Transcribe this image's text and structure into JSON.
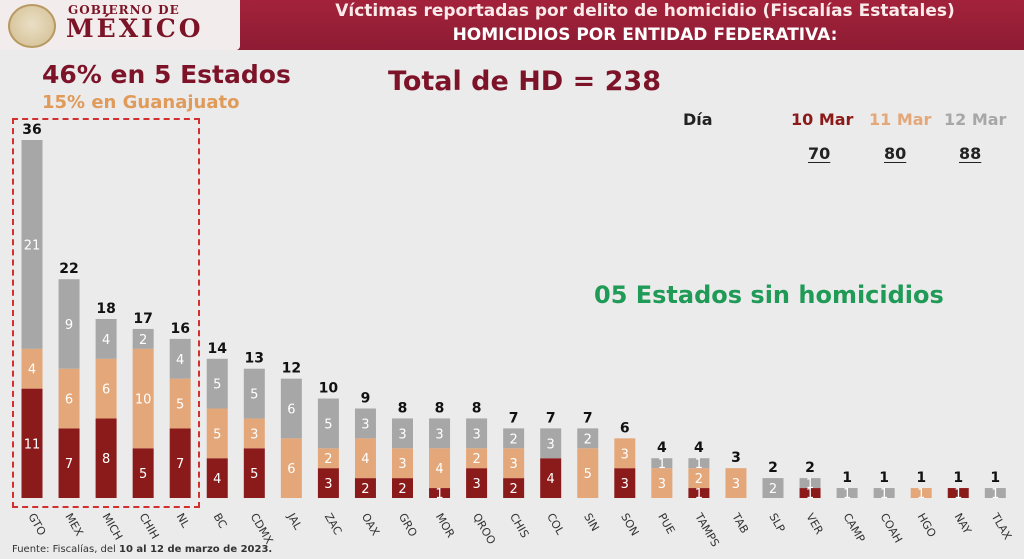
{
  "header": {
    "logo_small": "GOBIERNO DE",
    "logo_big": "MÉXICO",
    "title": "Víctimas reportadas por delito de homicidio (Fiscalías Estatales)",
    "subtitle": "HOMICIDIOS POR ENTIDAD FEDERATIVA:"
  },
  "stats": {
    "highlight": "46% en 5 Estados",
    "sub_highlight": "15% en Guanajuato",
    "total": "Total de HD = 238",
    "no_homicides": "05 Estados sin homicidios"
  },
  "days": {
    "header": "Día",
    "d1_label": "10 Mar",
    "d1_value": "70",
    "d2_label": "11 Mar",
    "d2_value": "80",
    "d3_label": "12 Mar",
    "d3_value": "88"
  },
  "source": {
    "prefix": "Fuente: Fiscalías, del",
    "range": "10 al 12 de marzo de 2023."
  },
  "colors": {
    "d10": "#8b1a1a",
    "d11": "#e3a77a",
    "d12": "#a7a7a7",
    "header_bg": "#9a1f37",
    "green": "#1f9a57"
  },
  "chart_data": {
    "type": "bar",
    "stacked": true,
    "categories": [
      "GTO",
      "MEX",
      "MICH",
      "CHIH",
      "NL",
      "BC",
      "CDMX",
      "JAL",
      "ZAC",
      "OAX",
      "GRO",
      "MOR",
      "QROO",
      "CHIS",
      "COL",
      "SIN",
      "SON",
      "PUE",
      "TAMPS",
      "TAB",
      "SLP",
      "VER",
      "CAMP",
      "COAH",
      "HGO",
      "NAY",
      "TLAX"
    ],
    "totals": [
      36,
      22,
      18,
      17,
      16,
      14,
      13,
      12,
      10,
      9,
      8,
      8,
      8,
      7,
      7,
      7,
      6,
      4,
      4,
      3,
      2,
      2,
      1,
      1,
      1,
      1,
      1
    ],
    "series": [
      {
        "name": "10 Mar",
        "values": [
          11,
          7,
          8,
          5,
          7,
          4,
          5,
          0,
          3,
          2,
          2,
          1,
          3,
          2,
          4,
          0,
          3,
          0,
          1,
          0,
          0,
          1,
          0,
          0,
          0,
          1,
          0
        ]
      },
      {
        "name": "11 Mar",
        "values": [
          4,
          6,
          6,
          10,
          5,
          5,
          3,
          6,
          2,
          4,
          3,
          4,
          2,
          3,
          0,
          5,
          3,
          3,
          2,
          3,
          0,
          0,
          0,
          0,
          1,
          0,
          0
        ]
      },
      {
        "name": "12 Mar",
        "values": [
          21,
          9,
          4,
          2,
          4,
          5,
          5,
          6,
          5,
          3,
          3,
          3,
          3,
          2,
          3,
          2,
          0,
          1,
          1,
          0,
          2,
          1,
          1,
          1,
          0,
          0,
          1
        ]
      }
    ],
    "ylim": [
      0,
      36
    ]
  }
}
